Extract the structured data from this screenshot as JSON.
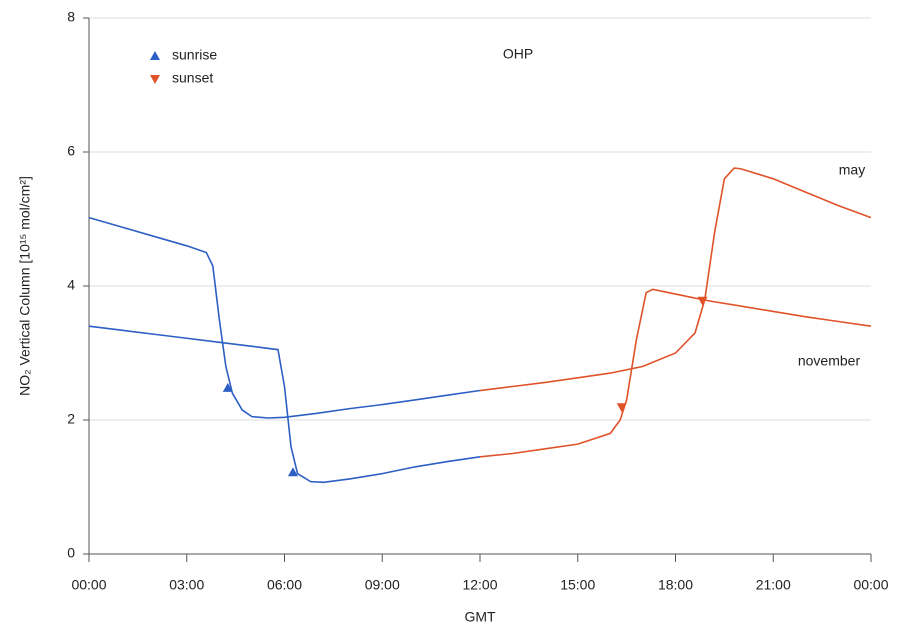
{
  "chart_data": {
    "type": "line",
    "title": "OHP",
    "x_label": "GMT",
    "y_label": "NO₂ Vertical Column [10¹⁵ mol/cm²]",
    "xlim": [
      0,
      24
    ],
    "xticks": [
      {
        "value": 0,
        "label": "00:00"
      },
      {
        "value": 3,
        "label": "03:00"
      },
      {
        "value": 6,
        "label": "06:00"
      },
      {
        "value": 9,
        "label": "09:00"
      },
      {
        "value": 12,
        "label": "12:00"
      },
      {
        "value": 15,
        "label": "15:00"
      },
      {
        "value": 18,
        "label": "18:00"
      },
      {
        "value": 21,
        "label": "21:00"
      },
      {
        "value": 24,
        "label": "00:00"
      }
    ],
    "ylim": [
      0,
      8
    ],
    "yticks": [
      0,
      2,
      4,
      6,
      8
    ],
    "grid": true,
    "annotations": [
      "may",
      "november"
    ],
    "series": [
      {
        "color": "#2d5fc4",
        "x": [
          0,
          1,
          2,
          3,
          3.6,
          3.8,
          4.0,
          4.2,
          4.4,
          4.7,
          5,
          5.5,
          6,
          7,
          8,
          9,
          10,
          11,
          12
        ],
        "values": [
          5.02,
          4.88,
          4.74,
          4.6,
          4.5,
          4.3,
          3.5,
          2.8,
          2.4,
          2.15,
          2.05,
          2.03,
          2.04,
          2.1,
          2.17,
          2.23,
          2.3,
          2.37,
          2.44
        ]
      },
      {
        "color": "#e0532a",
        "x": [
          12,
          13,
          14,
          15,
          16,
          17,
          18,
          18.6,
          18.9,
          19.2,
          19.5,
          19.8,
          20,
          21,
          22,
          23,
          24
        ],
        "values": [
          2.44,
          2.5,
          2.56,
          2.63,
          2.7,
          2.8,
          3.0,
          3.3,
          3.8,
          4.8,
          5.6,
          5.76,
          5.75,
          5.6,
          5.4,
          5.2,
          5.02
        ]
      },
      {
        "color": "#2d5fc4",
        "x": [
          0,
          1,
          2,
          3,
          4,
          5,
          5.8,
          6.0,
          6.2,
          6.4,
          6.8,
          7.2,
          8,
          9,
          10,
          11,
          12
        ],
        "values": [
          3.4,
          3.34,
          3.28,
          3.22,
          3.16,
          3.1,
          3.05,
          2.5,
          1.6,
          1.2,
          1.08,
          1.07,
          1.12,
          1.2,
          1.3,
          1.38,
          1.45
        ]
      },
      {
        "color": "#e0532a",
        "x": [
          12,
          13,
          14,
          15,
          16,
          16.3,
          16.5,
          16.8,
          17.1,
          17.3,
          18,
          19,
          20,
          21,
          22,
          23,
          24
        ],
        "values": [
          1.45,
          1.5,
          1.57,
          1.64,
          1.8,
          2.0,
          2.3,
          3.2,
          3.9,
          3.95,
          3.88,
          3.78,
          3.7,
          3.62,
          3.54,
          3.47,
          3.4
        ]
      }
    ],
    "markers": [
      {
        "name": "sunrise",
        "color": "#2d5fc4",
        "shape": "up",
        "x": [
          4.26,
          6.26
        ],
        "values": [
          2.48,
          1.22
        ]
      },
      {
        "name": "sunset",
        "color": "#e0532a",
        "shape": "down",
        "x": [
          16.35,
          18.83
        ],
        "values": [
          2.19,
          3.78
        ]
      }
    ]
  }
}
